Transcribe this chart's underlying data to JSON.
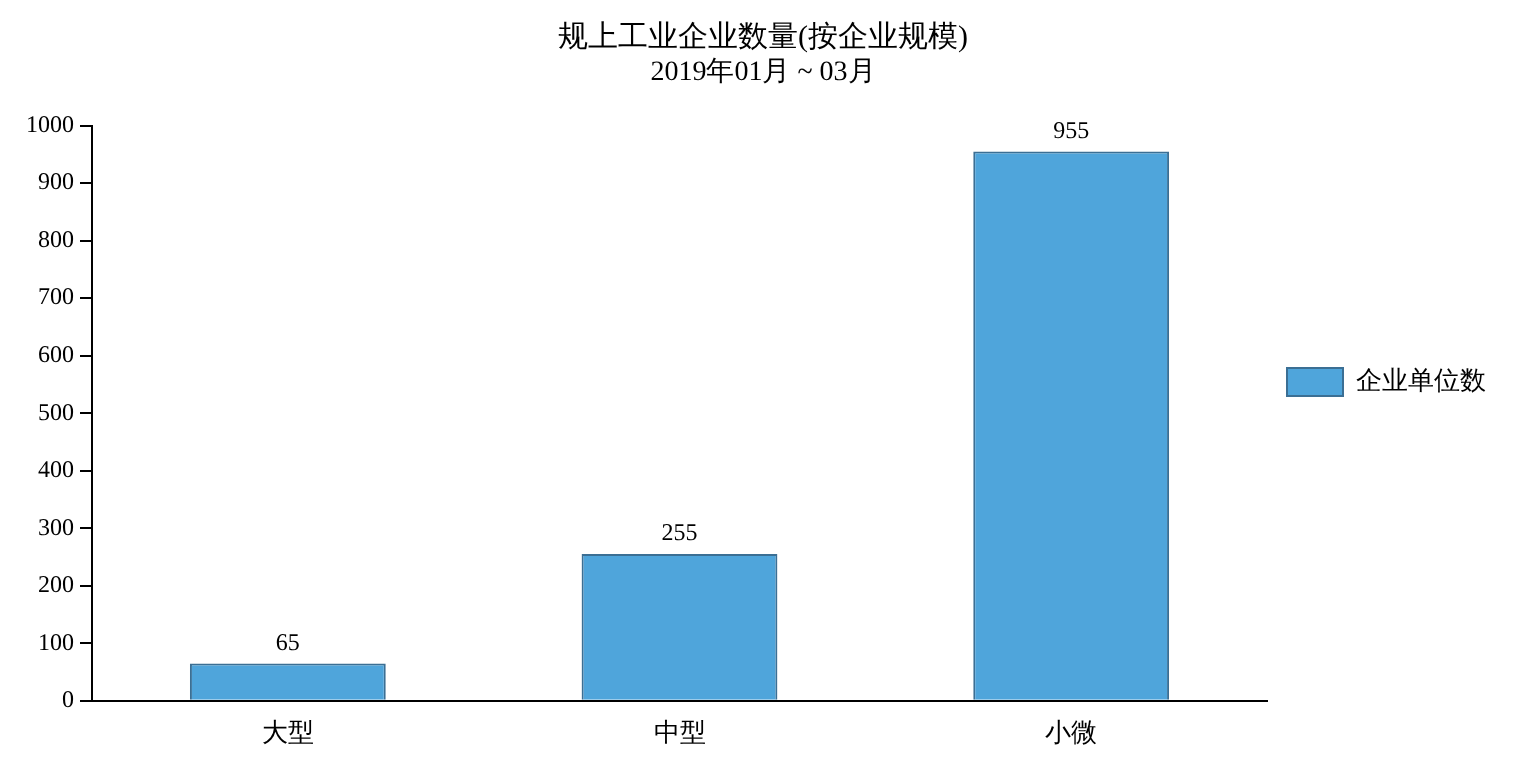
{
  "chart_data": {
    "type": "bar",
    "title": "规上工业企业数量(按企业规模)",
    "subtitle": "2019年01月 ~ 03月",
    "categories": [
      "大型",
      "中型",
      "小微"
    ],
    "series": [
      {
        "name": "企业单位数",
        "color": "#4fa5db",
        "values": [
          65,
          255,
          955
        ]
      }
    ],
    "ylim": [
      0,
      1000
    ],
    "yticks": [
      0,
      100,
      200,
      300,
      400,
      500,
      600,
      700,
      800,
      900,
      1000
    ],
    "grid": false,
    "legend": "right",
    "data_labels": true
  }
}
